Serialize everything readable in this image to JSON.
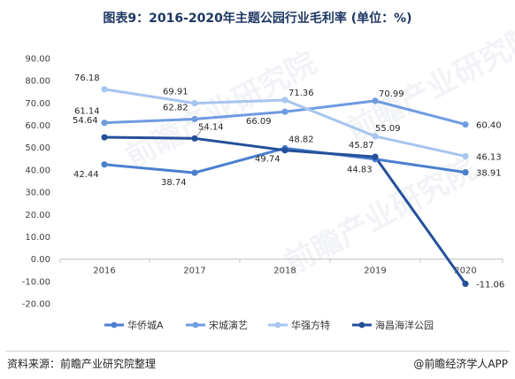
{
  "title": "图表9：2016-2020年主题公园行业毛利率 (单位：%)",
  "footer": {
    "source": "资料来源：前瞻产业研究院整理",
    "brand": "@前瞻经济学人APP"
  },
  "watermark": "前瞻产业研究院",
  "chart_data": {
    "type": "line",
    "title": "图表9：2016-2020年主题公园行业毛利率 (单位：%)",
    "xlabel": "",
    "ylabel": "",
    "x": [
      "2016",
      "2017",
      "2018",
      "2019",
      "2020"
    ],
    "ylim": [
      -20,
      90
    ],
    "yticks": [
      "-20.00",
      "-10.00",
      "0.00",
      "10.00",
      "20.00",
      "30.00",
      "40.00",
      "50.00",
      "60.00",
      "70.00",
      "80.00",
      "90.00"
    ],
    "grid": false,
    "legend_position": "bottom",
    "series": [
      {
        "name": "华侨城A",
        "values": [
          42.44,
          38.74,
          49.74,
          44.83,
          38.91
        ],
        "labels": [
          "42.44",
          "38.74",
          "49.74",
          "44.83",
          "38.91"
        ],
        "color": "#4a7fcf"
      },
      {
        "name": "宋城演艺",
        "values": [
          61.14,
          62.82,
          66.09,
          70.99,
          60.4
        ],
        "labels": [
          "61.14",
          "62.82",
          "66.09",
          "70.99",
          "60.40"
        ],
        "color": "#6f9be0"
      },
      {
        "name": "华强方特",
        "values": [
          76.18,
          69.91,
          71.36,
          55.09,
          46.13
        ],
        "labels": [
          "76.18",
          "69.91",
          "71.36",
          "55.09",
          "46.13"
        ],
        "color": "#a7c5ef"
      },
      {
        "name": "海昌海洋公园",
        "values": [
          54.64,
          54.14,
          48.82,
          45.87,
          -11.06
        ],
        "labels": [
          "54.64",
          "54.14",
          "48.82",
          "45.87",
          "-11.06"
        ],
        "color": "#24509a"
      }
    ]
  }
}
